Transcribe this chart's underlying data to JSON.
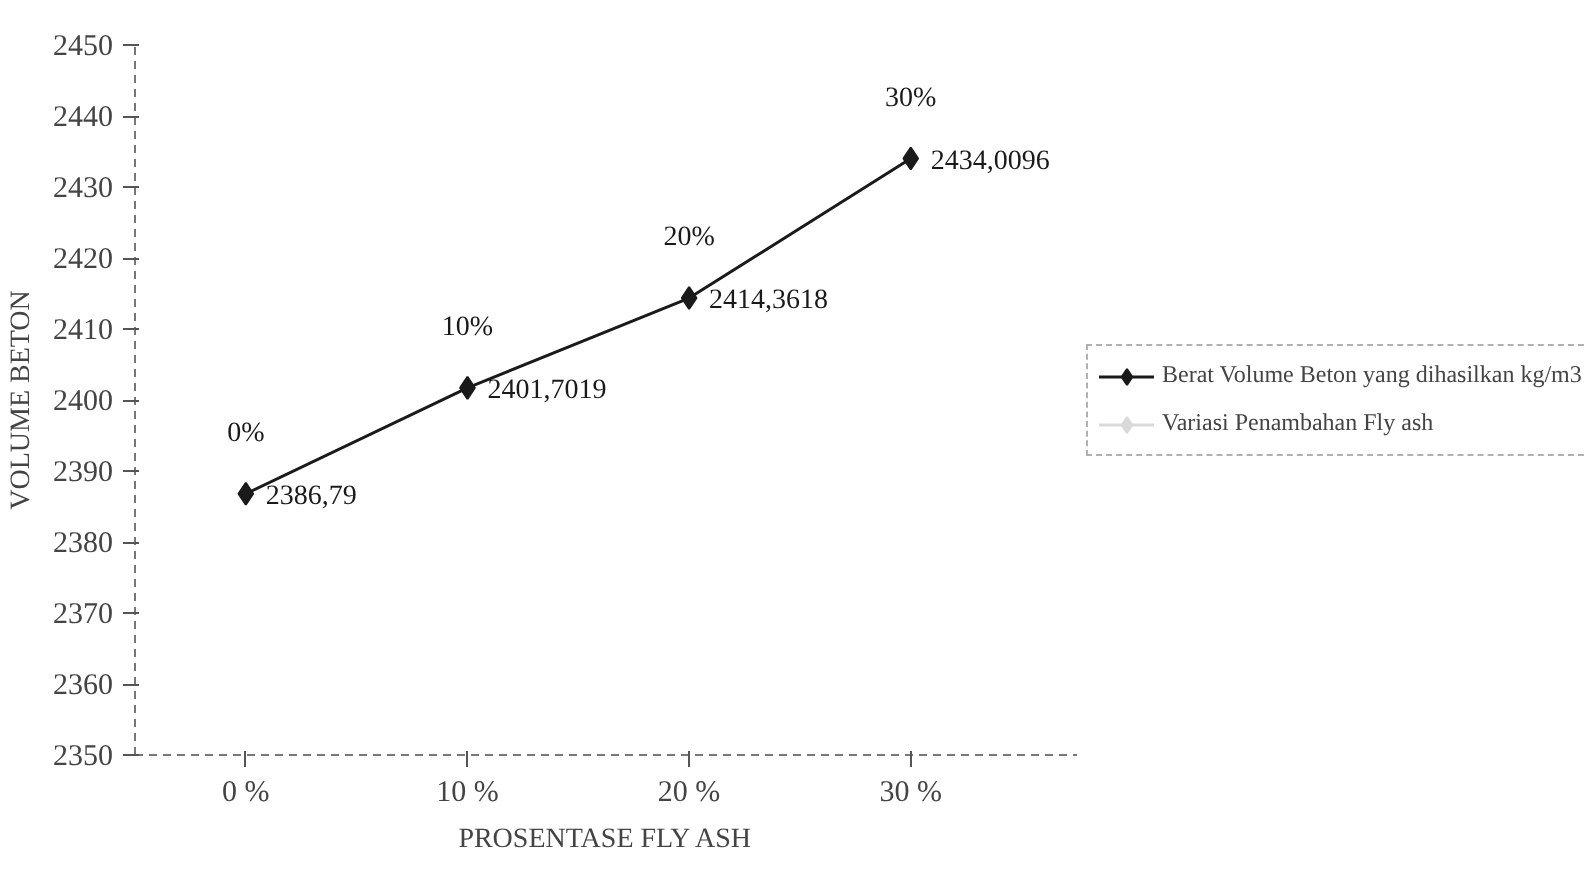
{
  "chart_data": {
    "type": "line",
    "xlabel": "PROSENTASE FLY ASH",
    "ylabel": "VOLUME BETON",
    "categories": [
      "0 %",
      "10 %",
      "20 %",
      "30 %"
    ],
    "series": [
      {
        "name": "Berat Volume Beton yang dihasilkan kg/m3",
        "color": "#1a1a1a",
        "values": [
          2386.79,
          2401.7019,
          2414.3618,
          2434.0096
        ],
        "value_labels": [
          "2386,79",
          "2401,7019",
          "2414,3618",
          "2434,0096"
        ]
      },
      {
        "name": "Variasi Penambahan Fly ash",
        "color": "#d9d9d9",
        "values": [
          null,
          null,
          null,
          null
        ]
      }
    ],
    "annotations": [
      "0%",
      "10%",
      "20%",
      "30%"
    ],
    "ylim": [
      2350,
      2450
    ],
    "yticks": [
      2350,
      2360,
      2370,
      2380,
      2390,
      2400,
      2410,
      2420,
      2430,
      2440,
      2450
    ],
    "grid": false,
    "legend": "right",
    "marker": "diamond",
    "line_style": "solid"
  }
}
